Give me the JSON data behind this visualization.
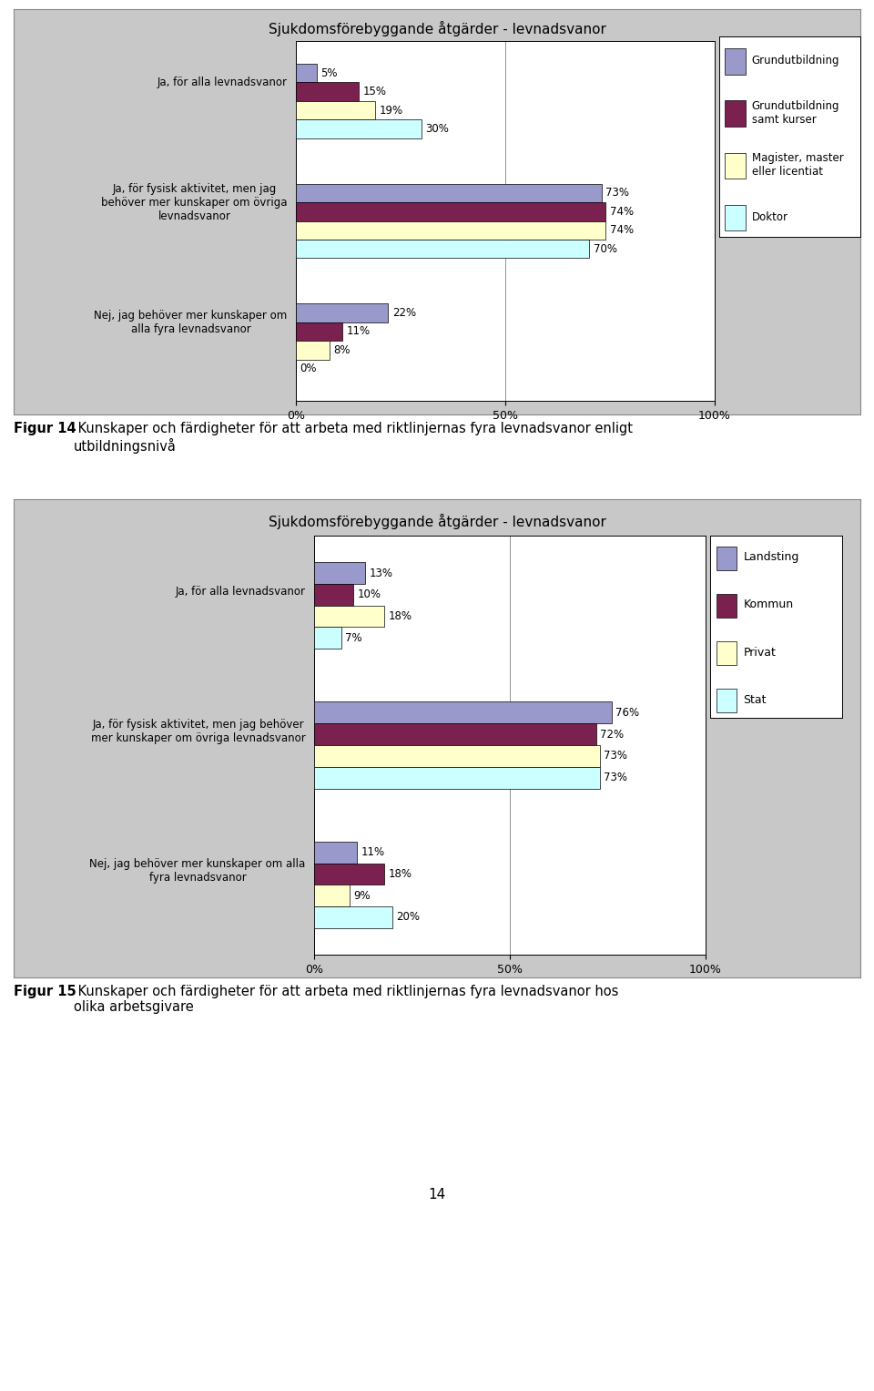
{
  "chart1": {
    "title": "Sjukdomsförebyggande åtgärder - levnadsvanor",
    "series": [
      {
        "label": "Grundutbildning",
        "color": "#9999cc",
        "values": [
          5,
          73,
          22
        ]
      },
      {
        "label": "Grundutbildning\nsamt kurser",
        "color": "#7b2150",
        "values": [
          15,
          74,
          11
        ]
      },
      {
        "label": "Magister, master\neller licentiat",
        "color": "#ffffcc",
        "values": [
          19,
          74,
          8
        ]
      },
      {
        "label": "Doktor",
        "color": "#ccffff",
        "values": [
          30,
          70,
          0
        ]
      }
    ],
    "cat_labels": [
      "Ja, för alla levnadsvanor",
      "Ja, för fysisk aktivitet, men jag\nbehöver mer kunskaper om övriga\nlevnadsvanor",
      "Nej, jag behöver mer kunskaper om\nalla fyra levnadsvanor"
    ],
    "bg_color": "#c8c8c8",
    "plot_bg": "#ffffff"
  },
  "chart2": {
    "title": "Sjukdomsförebyggande åtgärder - levnadsvanor",
    "series": [
      {
        "label": "Landsting",
        "color": "#9999cc",
        "values": [
          13,
          76,
          11
        ]
      },
      {
        "label": "Kommun",
        "color": "#7b2150",
        "values": [
          10,
          72,
          18
        ]
      },
      {
        "label": "Privat",
        "color": "#ffffcc",
        "values": [
          18,
          73,
          9
        ]
      },
      {
        "label": "Stat",
        "color": "#ccffff",
        "values": [
          7,
          73,
          20
        ]
      }
    ],
    "cat_labels": [
      "Ja, för alla levnadsvanor",
      "Ja, för fysisk aktivitet, men jag behöver\nmer kunskaper om övriga levnadsvanor",
      "Nej, jag behöver mer kunskaper om alla\nfyra levnadsvanor"
    ],
    "bg_color": "#c8c8c8",
    "plot_bg": "#ffffff"
  },
  "caption1_bold": "Figur 14",
  "caption1_normal": " Kunskaper och färdigheter för att arbeta med riktlinjernas fyra levnadsvanor enligt\nutbildningsnivå",
  "caption2_bold": "Figur 15",
  "caption2_normal": " Kunskaper och färdigheter för att arbeta med riktlinjernas fyra levnadsvanor hos\nolika arbetsgivare",
  "page_number": "14",
  "overall_bg": "#ffffff",
  "fig_width": 9.6,
  "fig_height": 15.27,
  "dpi": 100
}
